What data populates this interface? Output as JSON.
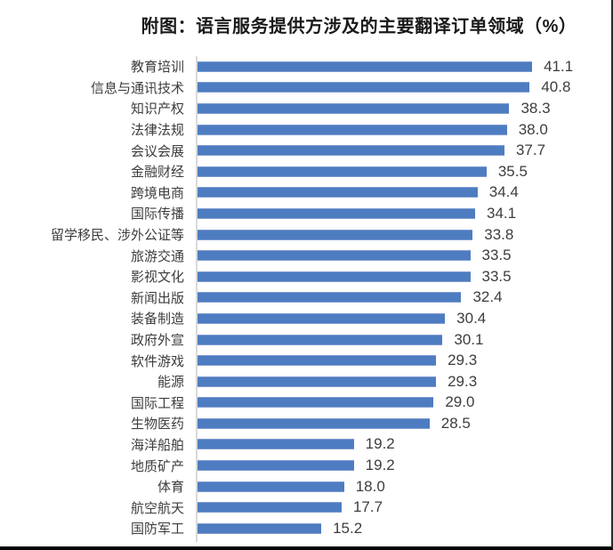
{
  "chart_data": {
    "type": "bar",
    "orientation": "horizontal",
    "title": "附图：语言服务提供方涉及的主要翻译订单领域（%）",
    "categories": [
      "教育培训",
      "信息与通讯技术",
      "知识产权",
      "法律法规",
      "会议会展",
      "金融财经",
      "跨境电商",
      "国际传播",
      "留学移民、涉外公证等",
      "旅游交通",
      "影视文化",
      "新闻出版",
      "装备制造",
      "政府外宣",
      "软件游戏",
      "能源",
      "国际工程",
      "生物医药",
      "海洋船舶",
      "地质矿产",
      "体育",
      "航空航天",
      "国防军工"
    ],
    "values": [
      41.1,
      40.8,
      38.3,
      38.0,
      37.7,
      35.5,
      34.4,
      34.1,
      33.8,
      33.5,
      33.5,
      32.4,
      30.4,
      30.1,
      29.3,
      29.3,
      29.0,
      28.5,
      19.2,
      19.2,
      18.0,
      17.7,
      15.2
    ],
    "value_labels": [
      "41.1",
      "40.8",
      "38.3",
      "38.0",
      "37.7",
      "35.5",
      "34.4",
      "34.1",
      "33.8",
      "33.5",
      "33.5",
      "32.4",
      "30.4",
      "30.1",
      "29.3",
      "29.3",
      "29.0",
      "28.5",
      "19.2",
      "19.2",
      "18.0",
      "17.7",
      "15.2"
    ],
    "xlabel": "",
    "ylabel": "",
    "xlim": [
      0,
      45
    ],
    "grid": false,
    "legend": false,
    "data_labels": true,
    "bar_color": "#4e7cc1",
    "axis_line_color": "#d9d9d9",
    "label_color": "#3d3d3d",
    "title_color": "#1a1a1a"
  }
}
